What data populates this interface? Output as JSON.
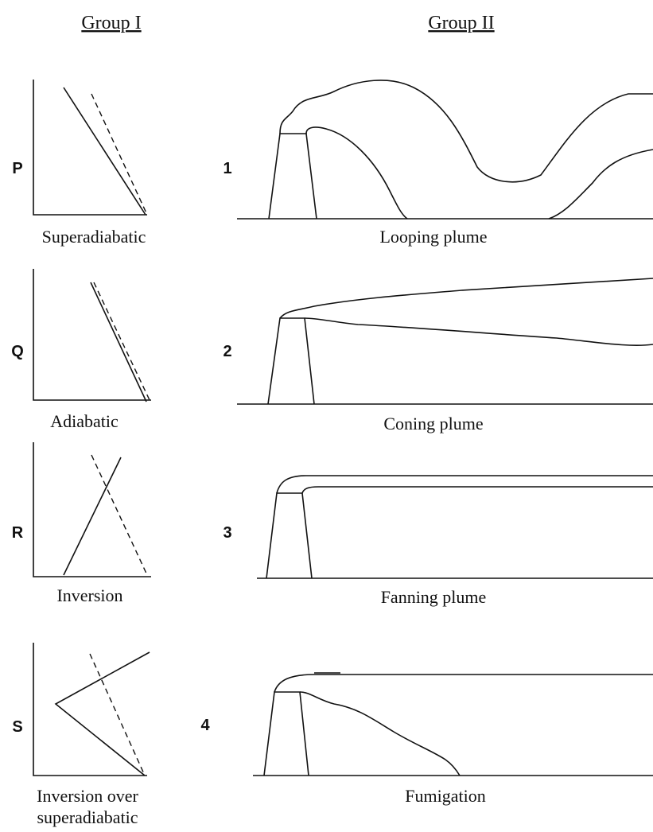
{
  "headers": [
    "Group I",
    "Group II"
  ],
  "group1": [
    {
      "letter": "P",
      "caption": [
        "Superadiabatic"
      ]
    },
    {
      "letter": "Q",
      "caption": [
        "Adiabatic"
      ]
    },
    {
      "letter": "R",
      "caption": [
        "Inversion"
      ]
    },
    {
      "letter": "S",
      "caption": [
        "Inversion over",
        "superadiabatic"
      ]
    }
  ],
  "group2": [
    {
      "number": "1",
      "caption": "Looping plume"
    },
    {
      "number": "2",
      "caption": "Coning plume"
    },
    {
      "number": "3",
      "caption": "Fanning plume"
    },
    {
      "number": "4",
      "caption": "Fumigation"
    }
  ]
}
